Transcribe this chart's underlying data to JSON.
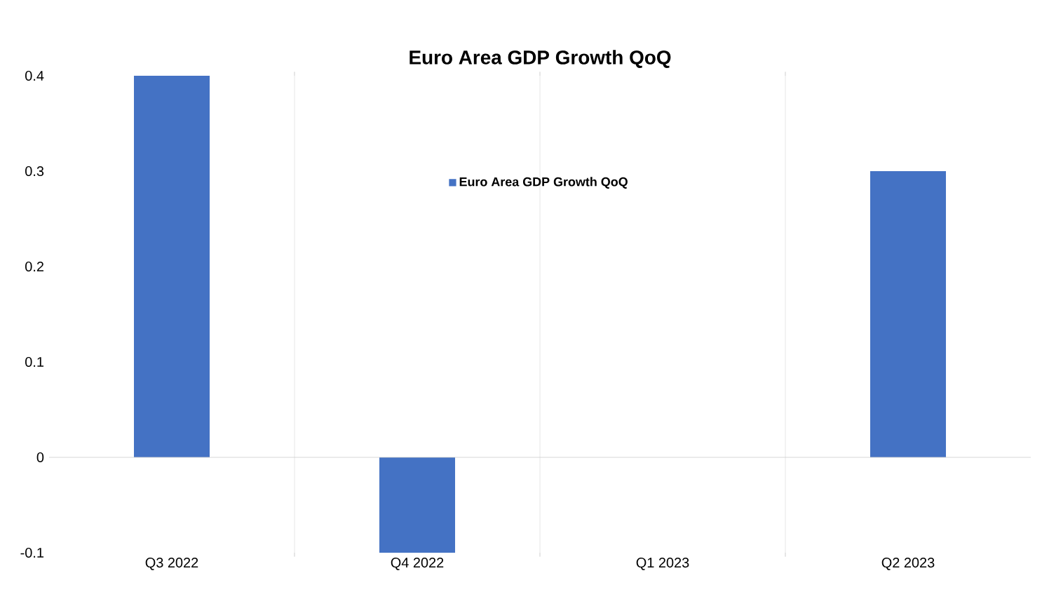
{
  "chart_data": {
    "type": "bar",
    "title": "Euro Area GDP Growth QoQ",
    "categories": [
      "Q3 2022",
      "Q4 2022",
      "Q1 2023",
      "Q2 2023"
    ],
    "series": [
      {
        "name": "Euro Area GDP Growth QoQ",
        "color": "#4472c4",
        "values": [
          0.4,
          -0.1,
          0,
          0.3
        ]
      }
    ],
    "ylim": [
      -0.1,
      0.4
    ],
    "yticks": [
      -0.1,
      0,
      0.1,
      0.2,
      0.3,
      0.4
    ],
    "grid": "x",
    "legend": "top"
  }
}
